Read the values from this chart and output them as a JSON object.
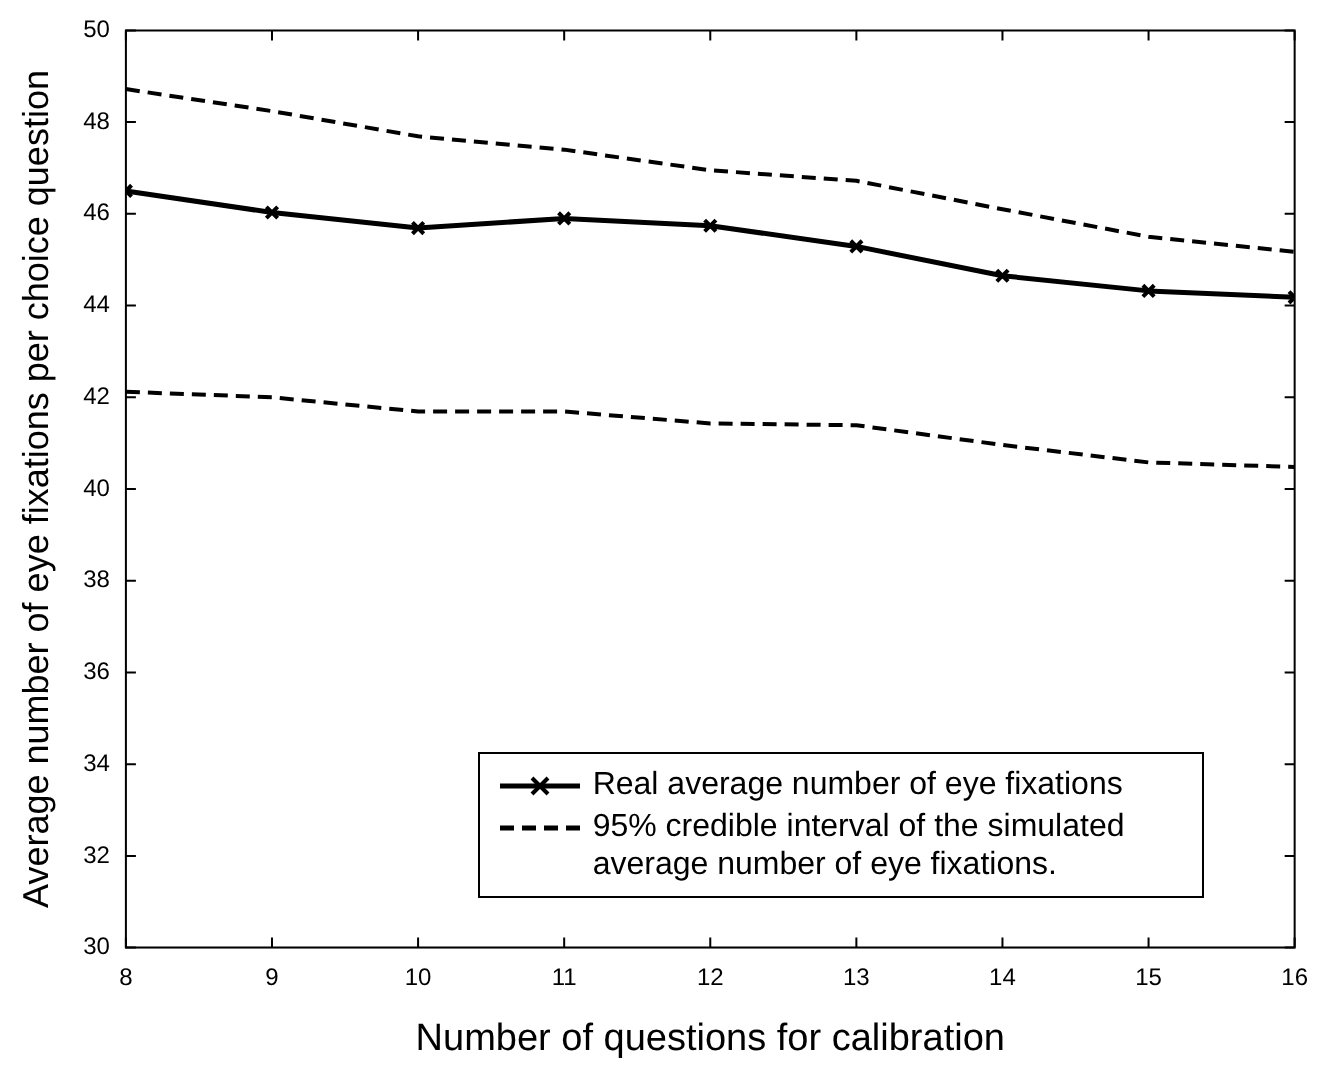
{
  "chart_data": {
    "type": "line",
    "xlabel": "Number of questions for calibration",
    "ylabel": "Average number of eye fixations per choice question",
    "x": [
      8,
      9,
      10,
      11,
      12,
      13,
      14,
      15,
      16
    ],
    "series": [
      {
        "name": "Real average number of eye fixations",
        "color": "#000000",
        "marker": "cross",
        "line_style": "solid",
        "values": [
          46.5,
          46.03,
          45.69,
          45.9,
          45.74,
          45.29,
          44.65,
          44.32,
          44.18
        ]
      },
      {
        "name": "95% credible interval of the simulated average number of eye fixations.",
        "color": "#000000",
        "marker": "none",
        "line_style": "dashed",
        "values": [
          48.72,
          48.24,
          47.69,
          47.4,
          46.95,
          46.72,
          46.1,
          45.5,
          45.17
        ]
      },
      {
        "color": "#000000",
        "marker": "none",
        "line_style": "dashed",
        "values": [
          42.12,
          42.0,
          41.69,
          41.69,
          41.43,
          41.39,
          40.96,
          40.58,
          40.48
        ]
      }
    ],
    "xlim": [
      8,
      16
    ],
    "xticks": [
      8,
      9,
      10,
      11,
      12,
      13,
      14,
      15,
      16
    ],
    "ylim": [
      30,
      50
    ],
    "yticks": [
      30,
      32,
      34,
      36,
      38,
      40,
      42,
      44,
      46,
      48,
      50
    ],
    "grid": false,
    "legend": "bottom right"
  }
}
